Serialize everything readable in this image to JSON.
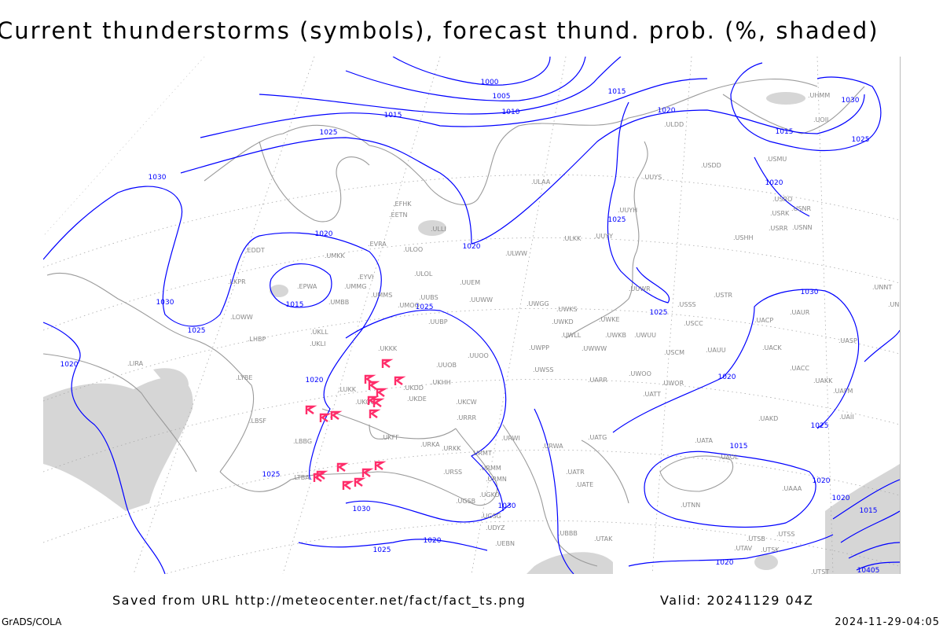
{
  "title": "Current thunderstorms (symbols), forecast thund. prob. (%, shaded)",
  "footer": {
    "saved": "Saved from URL http://meteocenter.net/fact/fact_ts.png",
    "valid": "Valid: 20241129 04Z",
    "software": "GrADS/COLA",
    "timestamp": "2024-11-29-04:05"
  },
  "colors": {
    "isobar": "#0000ff",
    "thunderstorm": "#ff2d6a",
    "shading": "#d6d6d6",
    "coast": "#9a9a9a"
  },
  "isobar_labels": [
    "1000",
    "1005",
    "1010",
    "1015",
    "1015",
    "1020",
    "1020",
    "1025",
    "1030",
    "1030",
    "1020",
    "1015",
    "1025",
    "1025",
    "1025",
    "1030",
    "1015",
    "1025",
    "1020",
    "1020",
    "1020",
    "1025",
    "1030",
    "1025",
    "1020",
    "1015",
    "1020",
    "1015",
    "1020",
    "1025",
    "1020",
    "1030",
    "1025",
    "1020",
    "1030",
    "10405"
  ],
  "stations": [
    "ULLI",
    "EETN",
    "EFHK",
    "ULOO",
    "EVRA",
    "EYVI",
    "UMMG",
    "UMKK",
    "EPWA",
    "UMBB",
    "ULOL",
    "UUEM",
    "UUWW",
    "UMMS",
    "UMOO",
    "UUBS",
    "UWGG",
    "UWKS",
    "UUBP",
    "UKLL",
    "UKLI",
    "LHBP",
    "LOWW",
    "LKPR",
    "EDDT",
    "LIRA",
    "LYBE",
    "LBSF",
    "LBBG",
    "LTBA",
    "LUKK",
    "UKKK",
    "UUOB",
    "UUOO",
    "UKOO",
    "UKHH",
    "UKDD",
    "UKDE",
    "UKCW",
    "URRR",
    "UKFF",
    "URKA",
    "URKK",
    "URMT",
    "URMM",
    "URMN",
    "URSS",
    "UGSB",
    "UGKO",
    "UGSG",
    "UBBB",
    "UDYZ",
    "UEBN",
    "UWPP",
    "UWSS",
    "UWWW",
    "UWLL",
    "UWKE",
    "UWKB",
    "UWUU",
    "UWOO",
    "UARR",
    "UATT",
    "UWOR",
    "USCM",
    "UAUU",
    "USCC",
    "USSS",
    "USTR",
    "UATG",
    "URWA",
    "URWI",
    "UATE",
    "UATR",
    "UTAK",
    "UTNN",
    "UAOL",
    "UATA",
    "UACC",
    "UAKK",
    "UAKD",
    "UAAA",
    "USHH",
    "USRR",
    "USNN",
    "USRK",
    "USNR",
    "USRO",
    "USMU",
    "USDD",
    "UUYS",
    "UUYH",
    "UUYY",
    "ULKK",
    "ULWW",
    "ULAA",
    "ULDD",
    "UHMM",
    "UUWR",
    "UWKD",
    "UAII",
    "UAFM",
    "UNBB",
    "UNNT",
    "UACP",
    "UASP",
    "UAUR",
    "UOII",
    "UACK",
    "UTSS",
    "UTST",
    "UTAV",
    "UTSK",
    "UTSB"
  ]
}
